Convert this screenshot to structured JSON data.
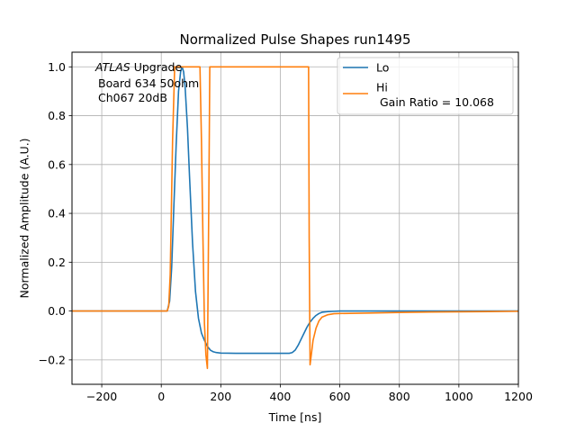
{
  "chart_data": {
    "type": "line",
    "title": "Normalized Pulse Shapes run1495",
    "xlabel": "Time [ns]",
    "ylabel": "Normalized Amplitude (A.U.)",
    "xlim": [
      -300,
      1200
    ],
    "ylim": [
      -0.3,
      1.06
    ],
    "xticks": [
      -200,
      0,
      200,
      400,
      600,
      800,
      1000,
      1200
    ],
    "yticks": [
      -0.2,
      0.0,
      0.2,
      0.4,
      0.6,
      0.8,
      1.0
    ],
    "xtick_labels": [
      "−200",
      "0",
      "200",
      "400",
      "600",
      "800",
      "1000",
      "1200"
    ],
    "ytick_labels": [
      "−0.2",
      "0.0",
      "0.2",
      "0.4",
      "0.6",
      "0.8",
      "1.0"
    ],
    "grid": true,
    "legend_position": "top-right",
    "annotation": {
      "line1_italic": "ATLAS",
      "line1_rest": " Upgrade",
      "line2": "Board 634 50ohm",
      "line3": "Ch067 20dB"
    },
    "series": [
      {
        "name": "Lo",
        "color": "#1f77b4",
        "x": [
          -300,
          20,
          28,
          35,
          42,
          50,
          58,
          65,
          70,
          75,
          80,
          88,
          95,
          105,
          115,
          125,
          135,
          145,
          155,
          165,
          175,
          185,
          200,
          250,
          300,
          350,
          400,
          430,
          440,
          450,
          460,
          470,
          480,
          490,
          500,
          510,
          520,
          530,
          540,
          560,
          580,
          600,
          700,
          800,
          900,
          1000,
          1100,
          1200
        ],
        "y": [
          0,
          0,
          0.04,
          0.18,
          0.42,
          0.68,
          0.9,
          0.98,
          1.0,
          0.98,
          0.92,
          0.75,
          0.55,
          0.28,
          0.08,
          -0.03,
          -0.09,
          -0.12,
          -0.145,
          -0.16,
          -0.167,
          -0.17,
          -0.172,
          -0.173,
          -0.173,
          -0.173,
          -0.173,
          -0.173,
          -0.17,
          -0.16,
          -0.14,
          -0.115,
          -0.09,
          -0.065,
          -0.045,
          -0.03,
          -0.018,
          -0.01,
          -0.005,
          -0.002,
          -0.001,
          0,
          0,
          0,
          0,
          0,
          0,
          0
        ]
      },
      {
        "name": "Hi\n Gain Ratio = 10.068",
        "color": "#ff7f0e",
        "x": [
          -300,
          20,
          25,
          30,
          38,
          45,
          130,
          135,
          140,
          145,
          150,
          155,
          160,
          163,
          495,
          497,
          500,
          503,
          510,
          520,
          530,
          540,
          560,
          580,
          600,
          700,
          800,
          900,
          1000,
          1100,
          1200
        ],
        "y": [
          0,
          0,
          0.02,
          0.15,
          0.7,
          1.0,
          1.0,
          0.7,
          0.3,
          -0.05,
          -0.18,
          -0.235,
          0.5,
          1.0,
          1.0,
          0.3,
          -0.22,
          -0.19,
          -0.12,
          -0.07,
          -0.04,
          -0.025,
          -0.015,
          -0.011,
          -0.01,
          -0.008,
          -0.006,
          -0.004,
          -0.003,
          -0.002,
          -0.001
        ]
      }
    ]
  }
}
